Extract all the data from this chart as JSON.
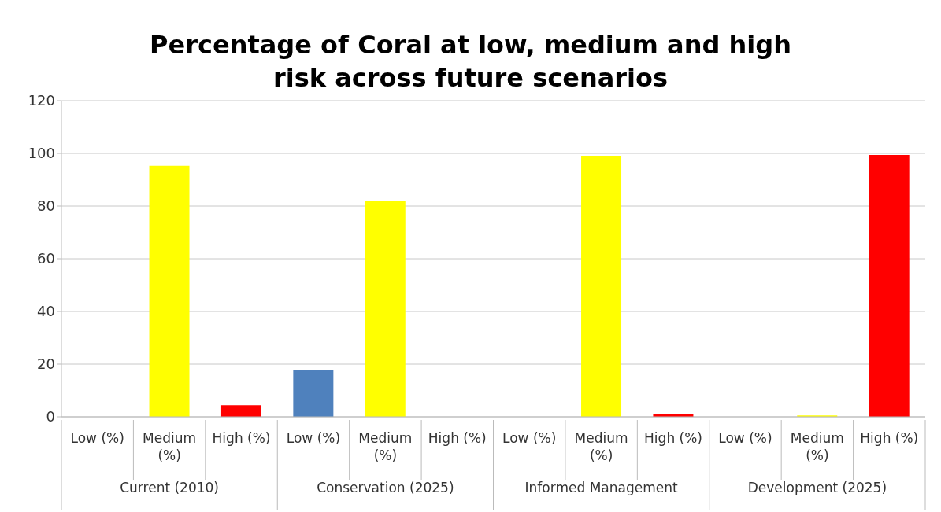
{
  "chart_data": {
    "type": "bar",
    "title": "Percentage of Coral at low, medium and high risk across future scenarios",
    "categories": [
      "Low (%)",
      "Medium (%)",
      "High (%)",
      "Low (%)",
      "Medium (%)",
      "High (%)",
      "Low (%)",
      "Medium (%)",
      "High (%)",
      "Low (%)",
      "Medium (%)",
      "High (%)"
    ],
    "values": [
      0,
      95.3,
      4.4,
      17.9,
      82.1,
      0,
      0,
      99.1,
      0.9,
      0,
      0.5,
      99.4
    ],
    "colors": [
      "#4f81bd",
      "#ffff00",
      "#ff0000",
      "#4f81bd",
      "#ffff00",
      "#ff0000",
      "#4f81bd",
      "#ffff00",
      "#ff0000",
      "#4f81bd",
      "#ffff00",
      "#ff0000"
    ],
    "annotations": [
      "Current (2010)",
      "Conservation (2025)",
      "Informed Management",
      "Development (2025)"
    ],
    "ylim": [
      0,
      120
    ],
    "yticks": [
      0,
      20,
      40,
      60,
      80,
      100,
      120
    ],
    "grid": "y"
  }
}
